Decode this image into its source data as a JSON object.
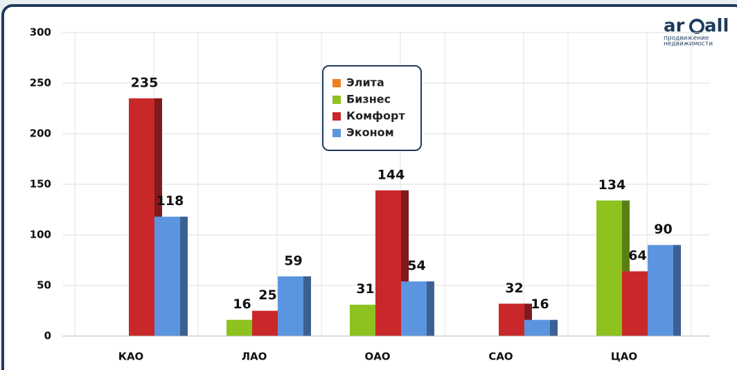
{
  "chart_data": {
    "type": "bar",
    "categories": [
      "КАО",
      "ЛАО",
      "ОАО",
      "САО",
      "ЦАО"
    ],
    "series": [
      {
        "name": "Элита",
        "color": "#f07f23",
        "values": [
          null,
          null,
          null,
          null,
          null
        ]
      },
      {
        "name": "Бизнес",
        "color": "#8dc21f",
        "values": [
          null,
          16,
          31,
          null,
          134
        ]
      },
      {
        "name": "Комфорт",
        "color": "#c8282a",
        "values": [
          235,
          25,
          144,
          32,
          64
        ]
      },
      {
        "name": "Эконом",
        "color": "#5b95e0",
        "values": [
          118,
          59,
          54,
          16,
          90
        ]
      }
    ],
    "ylim": [
      0,
      300
    ],
    "yticks": [
      0,
      50,
      100,
      150,
      200,
      250,
      300
    ],
    "grid": true,
    "logo": {
      "brand_left": "ar",
      "brand_right": "all",
      "tagline_1": "продвижение",
      "tagline_2": "недвижимости"
    }
  }
}
